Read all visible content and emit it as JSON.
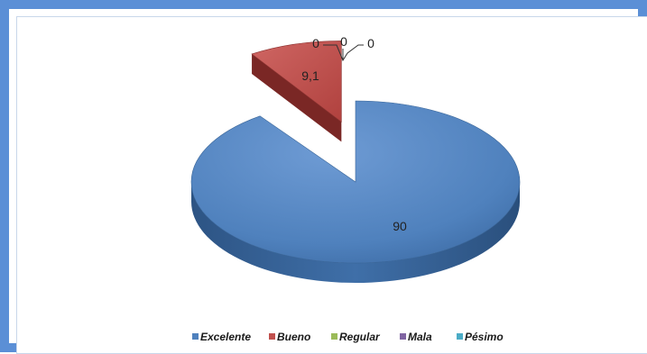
{
  "chart_data": {
    "type": "pie",
    "title": "",
    "categories": [
      "Excelente",
      "Bueno",
      "Regular",
      "Mala",
      "Pésimo"
    ],
    "values": [
      90,
      9.1,
      0,
      0,
      0
    ],
    "data_labels": [
      "90",
      "9,1",
      "0",
      "0",
      "0"
    ],
    "colors": {
      "Excelente": "#4f81bd",
      "Bueno": "#c0504d",
      "Regular": "#9bbb59",
      "Mala": "#8064a2",
      "Pésimo": "#4bacc6"
    },
    "style": "3d-exploded",
    "legend_position": "bottom"
  }
}
